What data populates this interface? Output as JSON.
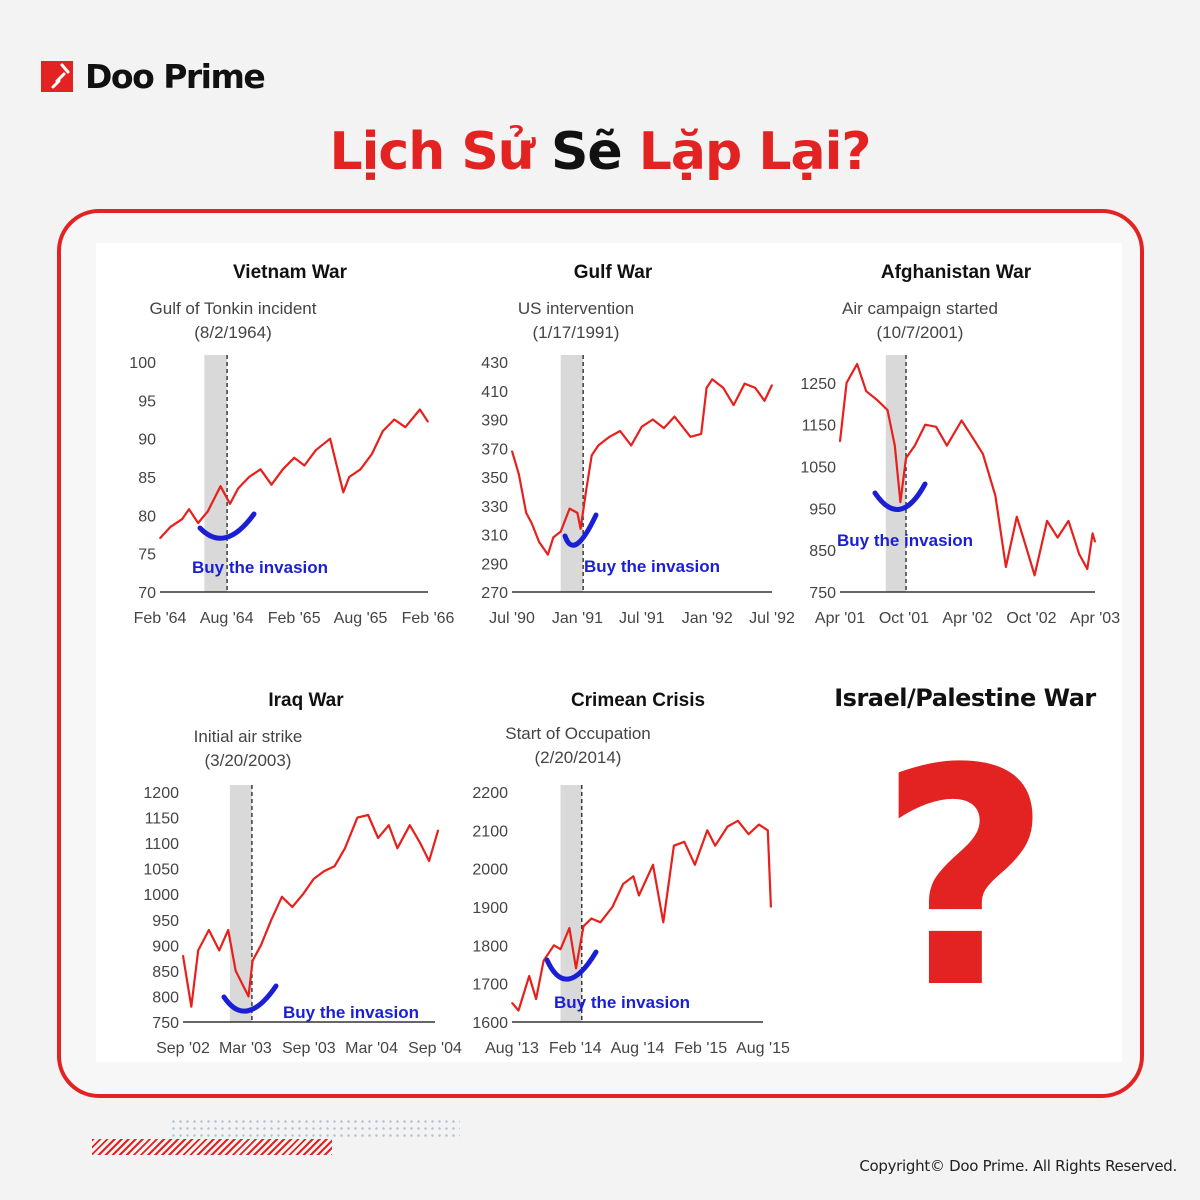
{
  "brand": {
    "name": "Doo Prime",
    "color": "#e32222"
  },
  "headline": {
    "word1": "Lịch",
    "word2": "Sử",
    "word3": "Sẽ",
    "word4": "Lặp",
    "word5": "Lại?"
  },
  "pending_panel": {
    "title": "Israel/Palestine War",
    "symbol": "?"
  },
  "footer": {
    "copyright": "Copyright© Doo Prime. All Rights Reserved."
  },
  "colors": {
    "line": "#e8201c",
    "marker": "#1a1fd6",
    "shade": "#d9d9d9"
  },
  "chart_data": [
    {
      "type": "line",
      "title": "Vietnam War",
      "event_label": "Gulf of Tonkin incident",
      "event_date_label": "(8/2/1964)",
      "event_date": "1964-08-02",
      "shade_start": "1964-06-01",
      "annotation": "Buy the invasion",
      "ylim": [
        70,
        100
      ],
      "yticks": [
        "100",
        "95",
        "90",
        "85",
        "80",
        "75",
        "70"
      ],
      "xticks": [
        {
          "label": "Feb '64",
          "date": "1964-02-01"
        },
        {
          "label": "Aug '64",
          "date": "1964-08-01"
        },
        {
          "label": "Feb '65",
          "date": "1965-02-01"
        },
        {
          "label": "Aug '65",
          "date": "1965-08-01"
        },
        {
          "label": "Feb '66",
          "date": "1966-02-01"
        }
      ],
      "points": [
        [
          "1964-02-01",
          77
        ],
        [
          "1964-03-01",
          78.5
        ],
        [
          "1964-04-01",
          79.5
        ],
        [
          "1964-04-20",
          80.8
        ],
        [
          "1964-05-15",
          79
        ],
        [
          "1964-06-10",
          80.5
        ],
        [
          "1964-07-15",
          83.8
        ],
        [
          "1964-08-10",
          81.5
        ],
        [
          "1964-09-01",
          83.5
        ],
        [
          "1964-10-01",
          85
        ],
        [
          "1964-11-01",
          86
        ],
        [
          "1964-12-01",
          84
        ],
        [
          "1965-01-01",
          86
        ],
        [
          "1965-02-01",
          87.5
        ],
        [
          "1965-03-01",
          86.5
        ],
        [
          "1965-04-01",
          88.5
        ],
        [
          "1965-05-10",
          90
        ],
        [
          "1965-06-15",
          83
        ],
        [
          "1965-07-01",
          85
        ],
        [
          "1965-08-01",
          86
        ],
        [
          "1965-09-01",
          88
        ],
        [
          "1965-10-01",
          91
        ],
        [
          "1965-11-01",
          92.5
        ],
        [
          "1965-12-01",
          91.5
        ],
        [
          "1966-01-10",
          93.8
        ],
        [
          "1966-02-01",
          92.2
        ]
      ]
    },
    {
      "type": "line",
      "title": "Gulf War",
      "event_label": "US intervention",
      "event_date_label": "(1/17/1991)",
      "event_date": "1991-01-17",
      "shade_start": "1990-11-15",
      "annotation": "Buy the invasion",
      "ylim": [
        270,
        430
      ],
      "yticks": [
        "430",
        "410",
        "390",
        "370",
        "350",
        "330",
        "310",
        "290",
        "270"
      ],
      "xticks": [
        {
          "label": "Jul '90",
          "date": "1990-07-01"
        },
        {
          "label": "Jan '91",
          "date": "1991-01-01"
        },
        {
          "label": "Jul '91",
          "date": "1991-07-01"
        },
        {
          "label": "Jan '92",
          "date": "1992-01-01"
        },
        {
          "label": "Jul '92",
          "date": "1992-07-01"
        }
      ],
      "points": [
        [
          "1990-07-01",
          368
        ],
        [
          "1990-07-20",
          352
        ],
        [
          "1990-08-10",
          325
        ],
        [
          "1990-08-25",
          318
        ],
        [
          "1990-09-15",
          305
        ],
        [
          "1990-10-10",
          296
        ],
        [
          "1990-10-25",
          308
        ],
        [
          "1990-11-15",
          312
        ],
        [
          "1990-12-10",
          328
        ],
        [
          "1991-01-01",
          325
        ],
        [
          "1991-01-10",
          314
        ],
        [
          "1991-01-25",
          340
        ],
        [
          "1991-02-10",
          365
        ],
        [
          "1991-03-01",
          372
        ],
        [
          "1991-04-01",
          378
        ],
        [
          "1991-05-01",
          382
        ],
        [
          "1991-06-01",
          372
        ],
        [
          "1991-07-01",
          385
        ],
        [
          "1991-08-01",
          390
        ],
        [
          "1991-09-01",
          384
        ],
        [
          "1991-10-01",
          392
        ],
        [
          "1991-11-15",
          378
        ],
        [
          "1991-12-15",
          380
        ],
        [
          "1991-12-30",
          412
        ],
        [
          "1992-01-15",
          418
        ],
        [
          "1992-02-15",
          412
        ],
        [
          "1992-03-15",
          400
        ],
        [
          "1992-04-15",
          415
        ],
        [
          "1992-05-15",
          412
        ],
        [
          "1992-06-10",
          403
        ],
        [
          "1992-07-01",
          414
        ]
      ]
    },
    {
      "type": "line",
      "title": "Afghanistan War",
      "event_label": "Air campaign started",
      "event_date_label": "(10/7/2001)",
      "event_date": "2001-10-07",
      "shade_start": "2001-08-10",
      "annotation": "Buy the invasion",
      "ylim": [
        750,
        1350
      ],
      "yticks": [
        "1250",
        "1150",
        "1050",
        "950",
        "850",
        "750"
      ],
      "xticks": [
        {
          "label": "Apr '01",
          "date": "2001-04-01"
        },
        {
          "label": "Oct '01",
          "date": "2001-10-01"
        },
        {
          "label": "Apr '02",
          "date": "2002-04-01"
        },
        {
          "label": "Oct '02",
          "date": "2002-10-01"
        },
        {
          "label": "Apr '03",
          "date": "2003-04-01"
        }
      ],
      "points": [
        [
          "2001-04-01",
          1110
        ],
        [
          "2001-04-20",
          1250
        ],
        [
          "2001-05-20",
          1295
        ],
        [
          "2001-06-15",
          1230
        ],
        [
          "2001-07-15",
          1210
        ],
        [
          "2001-08-15",
          1185
        ],
        [
          "2001-09-05",
          1100
        ],
        [
          "2001-09-21",
          965
        ],
        [
          "2001-10-07",
          1070
        ],
        [
          "2001-11-01",
          1100
        ],
        [
          "2001-12-01",
          1150
        ],
        [
          "2002-01-01",
          1145
        ],
        [
          "2002-02-01",
          1100
        ],
        [
          "2002-03-15",
          1160
        ],
        [
          "2002-04-15",
          1120
        ],
        [
          "2002-05-15",
          1080
        ],
        [
          "2002-06-20",
          980
        ],
        [
          "2002-07-20",
          810
        ],
        [
          "2002-08-20",
          930
        ],
        [
          "2002-09-15",
          860
        ],
        [
          "2002-10-10",
          790
        ],
        [
          "2002-11-15",
          920
        ],
        [
          "2002-12-15",
          880
        ],
        [
          "2003-01-15",
          920
        ],
        [
          "2003-02-15",
          840
        ],
        [
          "2003-03-10",
          805
        ],
        [
          "2003-03-25",
          890
        ],
        [
          "2003-04-01",
          870
        ]
      ]
    },
    {
      "type": "line",
      "title": "Iraq War",
      "event_label": "Initial air strike",
      "event_date_label": "(3/20/2003)",
      "event_date": "2003-03-20",
      "shade_start": "2003-01-15",
      "annotation": "Buy the invasion",
      "ylim": [
        750,
        1200
      ],
      "yticks": [
        "1200",
        "1150",
        "1100",
        "1050",
        "1000",
        "950",
        "900",
        "850",
        "800",
        "750"
      ],
      "xticks": [
        {
          "label": "Sep '02",
          "date": "2002-09-01"
        },
        {
          "label": "Mar '03",
          "date": "2003-03-01"
        },
        {
          "label": "Sep '03",
          "date": "2003-09-01"
        },
        {
          "label": "Mar '04",
          "date": "2004-03-01"
        },
        {
          "label": "Sep '04",
          "date": "2004-09-01"
        }
      ],
      "points": [
        [
          "2002-09-01",
          880
        ],
        [
          "2002-09-25",
          780
        ],
        [
          "2002-10-15",
          890
        ],
        [
          "2002-11-15",
          930
        ],
        [
          "2002-12-15",
          890
        ],
        [
          "2003-01-10",
          930
        ],
        [
          "2003-02-01",
          850
        ],
        [
          "2003-03-10",
          800
        ],
        [
          "2003-03-22",
          870
        ],
        [
          "2003-04-15",
          900
        ],
        [
          "2003-05-15",
          950
        ],
        [
          "2003-06-15",
          995
        ],
        [
          "2003-07-15",
          975
        ],
        [
          "2003-08-15",
          1000
        ],
        [
          "2003-09-15",
          1030
        ],
        [
          "2003-10-15",
          1045
        ],
        [
          "2003-11-15",
          1055
        ],
        [
          "2003-12-15",
          1090
        ],
        [
          "2004-01-20",
          1150
        ],
        [
          "2004-02-20",
          1155
        ],
        [
          "2004-03-20",
          1110
        ],
        [
          "2004-04-20",
          1135
        ],
        [
          "2004-05-15",
          1090
        ],
        [
          "2004-06-20",
          1135
        ],
        [
          "2004-07-20",
          1100
        ],
        [
          "2004-08-15",
          1065
        ],
        [
          "2004-09-10",
          1125
        ]
      ]
    },
    {
      "type": "line",
      "title": "Crimean Crisis",
      "event_label": "Start of Occupation",
      "event_date_label": "(2/20/2014)",
      "event_date": "2014-02-20",
      "shade_start": "2013-12-20",
      "annotation": "Buy the invasion",
      "ylim": [
        1600,
        2200
      ],
      "yticks": [
        "2200",
        "2100",
        "2000",
        "1900",
        "1800",
        "1700",
        "1600"
      ],
      "xticks": [
        {
          "label": "Aug '13",
          "date": "2013-08-01"
        },
        {
          "label": "Feb '14",
          "date": "2014-02-01"
        },
        {
          "label": "Aug '14",
          "date": "2014-08-01"
        },
        {
          "label": "Feb '15",
          "date": "2015-02-01"
        },
        {
          "label": "Aug '15",
          "date": "2015-08-01"
        }
      ],
      "points": [
        [
          "2013-08-01",
          1650
        ],
        [
          "2013-08-20",
          1630
        ],
        [
          "2013-09-20",
          1720
        ],
        [
          "2013-10-10",
          1660
        ],
        [
          "2013-11-01",
          1760
        ],
        [
          "2013-12-01",
          1800
        ],
        [
          "2013-12-20",
          1790
        ],
        [
          "2014-01-15",
          1845
        ],
        [
          "2014-02-03",
          1740
        ],
        [
          "2014-02-25",
          1850
        ],
        [
          "2014-03-20",
          1870
        ],
        [
          "2014-04-15",
          1860
        ],
        [
          "2014-05-20",
          1900
        ],
        [
          "2014-06-20",
          1960
        ],
        [
          "2014-07-20",
          1980
        ],
        [
          "2014-08-05",
          1930
        ],
        [
          "2014-09-15",
          2010
        ],
        [
          "2014-10-15",
          1860
        ],
        [
          "2014-11-15",
          2060
        ],
        [
          "2014-12-15",
          2070
        ],
        [
          "2015-01-15",
          2010
        ],
        [
          "2015-02-20",
          2100
        ],
        [
          "2015-03-15",
          2060
        ],
        [
          "2015-04-20",
          2110
        ],
        [
          "2015-05-20",
          2125
        ],
        [
          "2015-06-20",
          2090
        ],
        [
          "2015-07-20",
          2115
        ],
        [
          "2015-08-15",
          2100
        ],
        [
          "2015-08-24",
          1900
        ]
      ]
    }
  ]
}
